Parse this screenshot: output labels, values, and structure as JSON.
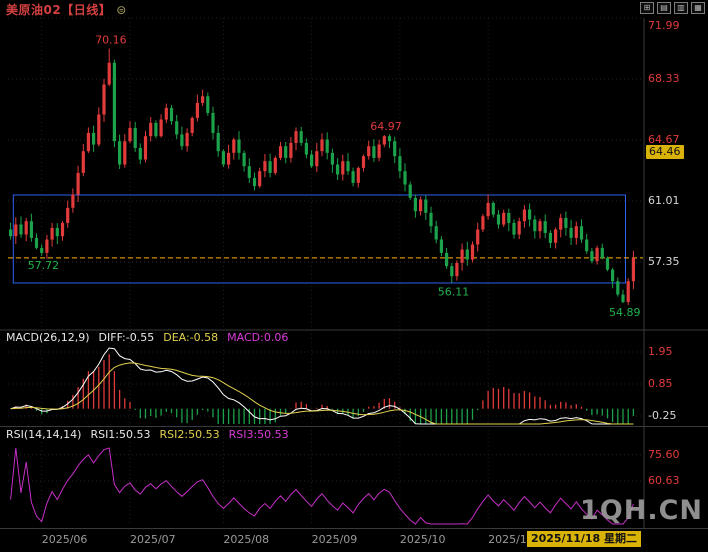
{
  "header": {
    "title": "美原油02【日线】",
    "title_color": "#d24040",
    "badge_icon": "⊜",
    "badge_color": "#a8a060"
  },
  "toolbar": {
    "icons": [
      "⊞",
      "▤",
      "▥",
      "▦"
    ]
  },
  "watermark": {
    "text": "1QH.CN",
    "color": "#9c9c9c"
  },
  "time_axis": {
    "labels": [
      {
        "text": "2025/06",
        "index": 6
      },
      {
        "text": "2025/07",
        "index": 23
      },
      {
        "text": "2025/08",
        "index": 41
      },
      {
        "text": "2025/09",
        "index": 58
      },
      {
        "text": "2025/10",
        "index": 75
      },
      {
        "text": "2025/1",
        "index": 92
      }
    ],
    "label_color": "#9a9a9a",
    "current_date": {
      "text": "2025/11/18 星期二",
      "bg": "#d9b308",
      "fg": "#111111"
    }
  },
  "indicators": {
    "macd": {
      "name": "MACD(26,12,9)",
      "values": [
        {
          "text": "DIFF:-0.55",
          "color": "#e8e8e8"
        },
        {
          "text": "DEA:-0.58",
          "color": "#e3d04e"
        },
        {
          "text": "MACD:0.06",
          "color": "#d93bd9"
        }
      ],
      "ticks": [
        {
          "label": "1.95",
          "value": 1.95,
          "color": "#e23b3b"
        },
        {
          "label": "0.85",
          "value": 0.85,
          "color": "#e23b3b"
        },
        {
          "label": "-0.25",
          "value": -0.25,
          "color": "#d8d8d8"
        }
      ],
      "diff_color": "#ffffff",
      "dea_color": "#e3d04e",
      "hist_up_color": "#e23b3b",
      "hist_down_color": "#1ca24a"
    },
    "rsi": {
      "name": "RSI(14,14,14)",
      "values": [
        {
          "text": "RSI1:50.53",
          "color": "#e8e8e8"
        },
        {
          "text": "RSI2:50.53",
          "color": "#e3d04e"
        },
        {
          "text": "RSI3:50.53",
          "color": "#d93bd9"
        }
      ],
      "ticks": [
        {
          "label": "75.60",
          "value": 75.6,
          "color": "#e23b3b"
        },
        {
          "label": "60.63",
          "value": 60.63,
          "color": "#e23b3b"
        }
      ],
      "line_color": "#c62fc6"
    }
  },
  "chart_data": {
    "type": "candlestick",
    "title": "美原油02 日线",
    "up_color": "#e23b3b",
    "down_color": "#1ca24a",
    "ylim": [
      53.5,
      72.6
    ],
    "y_ticks": [
      {
        "label": "71.99",
        "price": 71.99,
        "color": "#e23b3b"
      },
      {
        "label": "68.33",
        "price": 68.33,
        "color": "#e23b3b"
      },
      {
        "label": "64.67",
        "price": 64.67,
        "color": "#e23b3b"
      },
      {
        "label": "61.01",
        "price": 61.01,
        "color": "#d8d8d8"
      },
      {
        "label": "57.35",
        "price": 57.35,
        "color": "#d8d8d8"
      }
    ],
    "price_tag": {
      "label": "64.46",
      "price": 64.46,
      "bg": "#d9b308",
      "fg": "#111111"
    },
    "last_price_line": {
      "price": 57.6,
      "color": "#ffb400"
    },
    "range_box": {
      "start_index": 1,
      "end_index": 118,
      "top_price": 61.37,
      "bottom_price": 56.09,
      "color": "#2e62f0"
    },
    "annotations": [
      {
        "index": 19,
        "price": 70.16,
        "label": "70.16",
        "side": "above",
        "color": "#e23b3b"
      },
      {
        "index": 6,
        "price": 57.72,
        "label": "57.72",
        "side": "below",
        "color": "#22b24c"
      },
      {
        "index": 72,
        "price": 64.97,
        "label": "64.97",
        "side": "above",
        "color": "#e23b3b"
      },
      {
        "index": 85,
        "price": 56.11,
        "label": "56.11",
        "side": "below",
        "color": "#22b24c"
      },
      {
        "index": 118,
        "price": 54.89,
        "label": "54.89",
        "side": "below",
        "color": "#22b24c"
      }
    ],
    "closes": [
      58.9,
      59.6,
      59.0,
      59.8,
      58.8,
      58.2,
      57.9,
      58.7,
      59.4,
      58.9,
      59.7,
      60.6,
      61.4,
      62.7,
      64.0,
      65.1,
      64.4,
      66.2,
      68.0,
      69.3,
      64.6,
      63.2,
      64.6,
      65.4,
      64.2,
      63.5,
      64.9,
      65.7,
      64.9,
      65.9,
      66.6,
      65.8,
      65.0,
      64.3,
      65.1,
      66.0,
      66.9,
      67.3,
      66.3,
      65.1,
      64.0,
      63.2,
      63.9,
      64.7,
      63.9,
      63.1,
      62.4,
      61.9,
      62.8,
      63.4,
      62.7,
      63.6,
      64.3,
      63.6,
      64.5,
      65.2,
      64.5,
      63.8,
      63.1,
      64.0,
      64.7,
      63.9,
      63.2,
      62.6,
      63.4,
      62.8,
      62.1,
      63.0,
      63.7,
      64.3,
      63.6,
      64.4,
      64.9,
      64.6,
      63.7,
      62.8,
      62.0,
      61.2,
      60.4,
      61.1,
      60.3,
      59.5,
      58.7,
      57.9,
      57.1,
      56.5,
      57.3,
      58.1,
      57.5,
      58.4,
      59.3,
      60.1,
      60.9,
      60.2,
      59.6,
      60.3,
      59.7,
      59.0,
      59.8,
      60.5,
      59.9,
      59.2,
      59.8,
      59.1,
      58.5,
      59.3,
      60.0,
      59.4,
      58.8,
      59.5,
      58.7,
      58.0,
      57.4,
      58.2,
      57.6,
      56.9,
      56.2,
      55.4,
      54.95,
      56.2,
      57.6
    ],
    "high_overrides": {
      "19": 70.16,
      "72": 64.97
    },
    "low_overrides": {
      "6": 57.72,
      "85": 56.11,
      "118": 54.89
    },
    "macd_params": [
      26,
      12,
      9
    ],
    "rsi_params": [
      14,
      14,
      14
    ]
  }
}
